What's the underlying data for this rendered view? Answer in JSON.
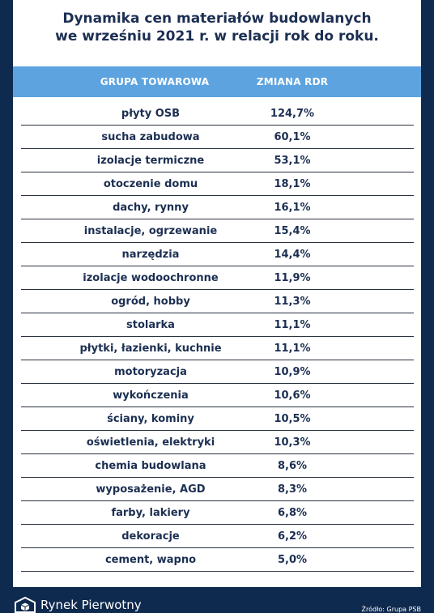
{
  "title": {
    "line1": "Dynamika cen materiałów budowlanych",
    "line2": "we wrześniu 2021 r. w relacji rok do roku."
  },
  "table": {
    "headers": [
      "GRUPA TOWAROWA",
      "ZMIANA RDR"
    ],
    "rows": [
      {
        "group": "płyty OSB",
        "change": "124,7%"
      },
      {
        "group": "sucha zabudowa",
        "change": "60,1%"
      },
      {
        "group": "izolacje termiczne",
        "change": "53,1%"
      },
      {
        "group": "otoczenie domu",
        "change": "18,1%"
      },
      {
        "group": "dachy, rynny",
        "change": "16,1%"
      },
      {
        "group": "instalacje, ogrzewanie",
        "change": "15,4%"
      },
      {
        "group": "narzędzia",
        "change": "14,4%"
      },
      {
        "group": "izolacje wodoochronne",
        "change": "11,9%"
      },
      {
        "group": "ogród, hobby",
        "change": "11,3%"
      },
      {
        "group": "stolarka",
        "change": "11,1%"
      },
      {
        "group": "płytki, łazienki, kuchnie",
        "change": "11,1%"
      },
      {
        "group": "motoryzacja",
        "change": "10,9%"
      },
      {
        "group": "wykończenia",
        "change": "10,6%"
      },
      {
        "group": "ściany, kominy",
        "change": "10,5%"
      },
      {
        "group": "oświetlenia, elektryki",
        "change": "10,3%"
      },
      {
        "group": "chemia budowlana",
        "change": "8,6%"
      },
      {
        "group": "wyposażenie, AGD",
        "change": "8,3%"
      },
      {
        "group": "farby, lakiery",
        "change": "6,8%"
      },
      {
        "group": "dekoracje",
        "change": "6,2%"
      },
      {
        "group": "cement, wapno",
        "change": "5,0%"
      }
    ]
  },
  "footer": {
    "brand": "Rynek Pierwotny",
    "brand_icon": "house-cube-icon",
    "source": "Źródło: Grupa PSB"
  },
  "colors": {
    "background": "#0f2a4f",
    "header": "#5da3e0",
    "text": "#1c2f52"
  }
}
